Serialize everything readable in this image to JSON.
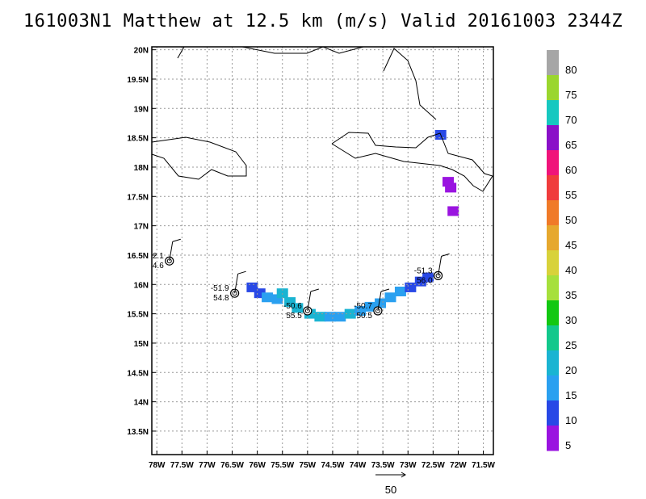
{
  "title": "161003N1 Matthew at 12.5 km (m/s) Valid 20161003 2344Z",
  "map": {
    "lon_range": [
      -78.1,
      -71.3
    ],
    "lat_range": [
      13.1,
      20.05
    ],
    "lon_ticks": [
      "78W",
      "77.5W",
      "77W",
      "76.5W",
      "76W",
      "75.5W",
      "75W",
      "74.5W",
      "74W",
      "73.5W",
      "73W",
      "72.5W",
      "72W",
      "71.5W"
    ],
    "lon_tick_values": [
      -78,
      -77.5,
      -77,
      -76.5,
      -76,
      -75.5,
      -75,
      -74.5,
      -74,
      -73.5,
      -73,
      -72.5,
      -72,
      -71.5
    ],
    "lat_ticks": [
      "20N",
      "19.5N",
      "19N",
      "18.5N",
      "18N",
      "17.5N",
      "17N",
      "16.5N",
      "16N",
      "15.5N",
      "15N",
      "14.5N",
      "14N",
      "13.5N"
    ],
    "lat_tick_values": [
      20,
      19.5,
      19,
      18.5,
      18,
      17.5,
      17,
      16.5,
      16,
      15.5,
      15,
      14.5,
      14,
      13.5
    ],
    "grid": true
  },
  "colorbar": {
    "labels": [
      "80",
      "75",
      "70",
      "65",
      "60",
      "55",
      "50",
      "45",
      "40",
      "35",
      "30",
      "25",
      "20",
      "15",
      "10",
      "5"
    ],
    "colors": [
      "#a6a6a6",
      "#9ad62e",
      "#16c8c0",
      "#8a10c8",
      "#f0147a",
      "#f03c3c",
      "#f07a28",
      "#e6a82e",
      "#d8d23a",
      "#a6e03c",
      "#12c812",
      "#12c88c",
      "#1ab4d2",
      "#2aa0f0",
      "#2848e6",
      "#9a14e0"
    ]
  },
  "stations": [
    {
      "lon": -77.75,
      "lat": 16.4,
      "label_top": "2.1",
      "label_bottom": "4.6"
    },
    {
      "lon": -76.45,
      "lat": 15.85,
      "label_top": "-51.9",
      "label_bottom": "54.8"
    },
    {
      "lon": -75.0,
      "lat": 15.55,
      "label_top": "-50.6",
      "label_bottom": "55.5"
    },
    {
      "lon": -73.6,
      "lat": 15.55,
      "label_top": "-50.7",
      "label_bottom": "50.5"
    },
    {
      "lon": -72.4,
      "lat": 16.15,
      "label_top": "-51.3",
      "label_bottom": "56.0"
    }
  ],
  "wind_cells": [
    {
      "lon": -76.1,
      "lat": 15.95,
      "value": 10
    },
    {
      "lon": -75.95,
      "lat": 15.85,
      "value": 10
    },
    {
      "lon": -75.8,
      "lat": 15.78,
      "value": 15
    },
    {
      "lon": -75.6,
      "lat": 15.75,
      "value": 15
    },
    {
      "lon": -75.5,
      "lat": 15.85,
      "value": 20
    },
    {
      "lon": -75.35,
      "lat": 15.7,
      "value": 20
    },
    {
      "lon": -75.2,
      "lat": 15.6,
      "value": 20
    },
    {
      "lon": -74.95,
      "lat": 15.5,
      "value": 20
    },
    {
      "lon": -74.75,
      "lat": 15.45,
      "value": 20
    },
    {
      "lon": -74.55,
      "lat": 15.45,
      "value": 15
    },
    {
      "lon": -74.35,
      "lat": 15.45,
      "value": 15
    },
    {
      "lon": -74.15,
      "lat": 15.5,
      "value": 20
    },
    {
      "lon": -73.95,
      "lat": 15.55,
      "value": 15
    },
    {
      "lon": -73.75,
      "lat": 15.62,
      "value": 15
    },
    {
      "lon": -73.55,
      "lat": 15.68,
      "value": 15
    },
    {
      "lon": -73.35,
      "lat": 15.78,
      "value": 15
    },
    {
      "lon": -73.15,
      "lat": 15.88,
      "value": 15
    },
    {
      "lon": -72.95,
      "lat": 15.95,
      "value": 10
    },
    {
      "lon": -72.75,
      "lat": 16.05,
      "value": 10
    },
    {
      "lon": -72.6,
      "lat": 16.12,
      "value": 10
    },
    {
      "lon": -72.35,
      "lat": 18.55,
      "value": 10
    },
    {
      "lon": -72.2,
      "lat": 17.75,
      "value": 5
    },
    {
      "lon": -72.15,
      "lat": 17.65,
      "value": 5
    },
    {
      "lon": -72.1,
      "lat": 17.25,
      "value": 5
    }
  ],
  "reference_vector": {
    "label": "50"
  }
}
